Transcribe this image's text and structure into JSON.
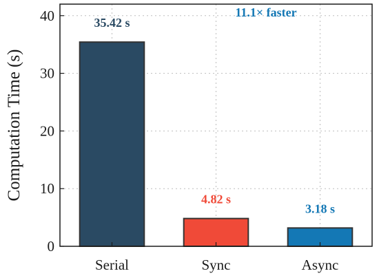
{
  "chart_data": {
    "type": "bar",
    "categories": [
      "Serial",
      "Sync",
      "Async"
    ],
    "values": [
      35.42,
      4.82,
      3.18
    ],
    "data_labels": [
      "35.42 s",
      "4.82 s",
      "3.18 s"
    ],
    "colors": [
      "#2a4a63",
      "#f04a38",
      "#1478b5"
    ],
    "ylabel": "Computation Time (s)",
    "xlabel": "",
    "title": "",
    "ylim": [
      0,
      42
    ],
    "yticks": [
      0,
      10,
      20,
      30,
      40
    ],
    "grid": true,
    "annotation": {
      "text": "11.1× faster",
      "color": "#1478b5"
    }
  }
}
